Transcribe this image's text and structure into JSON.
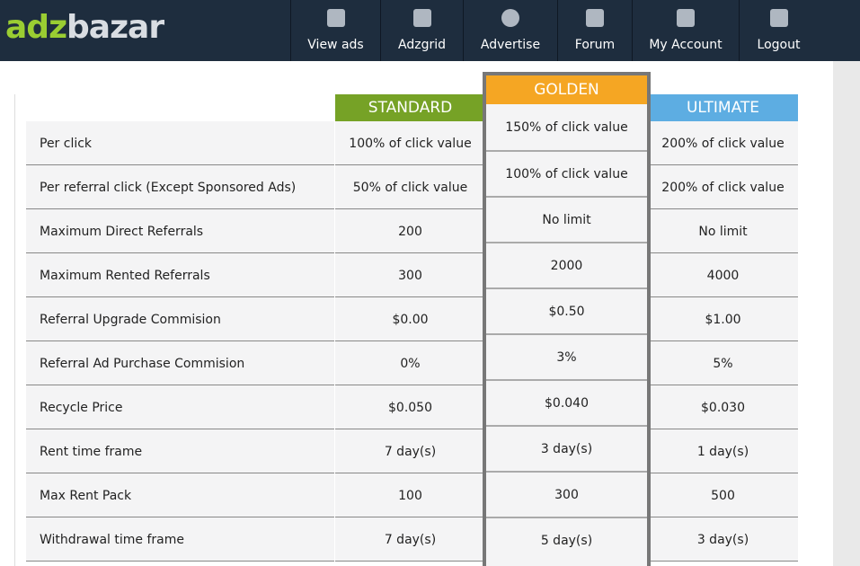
{
  "header": {
    "logo": {
      "prefix": "adz",
      "suffix": "bazar"
    },
    "nav": [
      "View ads",
      "Adzgrid",
      "Advertise",
      "Forum",
      "My Account",
      "Logout"
    ]
  },
  "table": {
    "columns": [
      "STANDARD",
      "GOLDEN",
      "ULTIMATE"
    ],
    "rows": [
      [
        "Per click",
        "100% of click value",
        "150% of click value",
        "200% of click value"
      ],
      [
        "Per referral click (Except Sponsored Ads)",
        "50% of click value",
        "100% of click value",
        "200% of click value"
      ],
      [
        "Maximum Direct Referrals",
        "200",
        "No limit",
        "No limit"
      ],
      [
        "Maximum Rented Referrals",
        "300",
        "2000",
        "4000"
      ],
      [
        "Referral Upgrade Commision",
        "$0.00",
        "$0.50",
        "$1.00"
      ],
      [
        "Referral Ad Purchase Commision",
        "0%",
        "3%",
        "5%"
      ],
      [
        "Recycle Price",
        "$0.050",
        "$0.040",
        "$0.030"
      ],
      [
        "Rent time frame",
        "7 day(s)",
        "3 day(s)",
        "1 day(s)"
      ],
      [
        "Max Rent Pack",
        "100",
        "300",
        "500"
      ],
      [
        "Withdrawal time frame",
        "7 day(s)",
        "5 day(s)",
        "3 day(s)"
      ]
    ]
  }
}
